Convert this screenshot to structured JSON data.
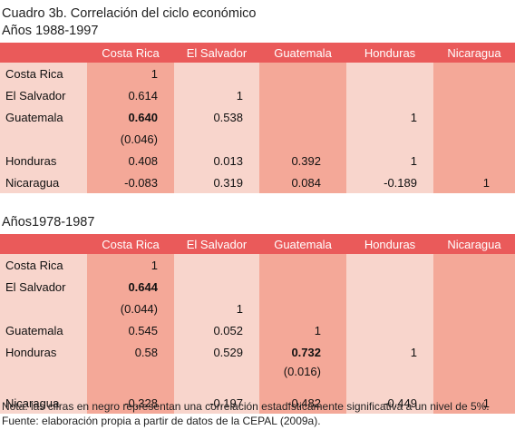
{
  "table1": {
    "title": "Cuadro 3b. Correlación del ciclo económico",
    "subtitle": "Años 1988-1997",
    "columns": [
      "Costa Rica",
      "El Salvador",
      "Guatemala",
      "Honduras",
      "Nicaragua"
    ],
    "rows": [
      {
        "label": "Costa Rica",
        "cells": [
          "1",
          "",
          "",
          "",
          ""
        ]
      },
      {
        "label": "El Salvador",
        "cells": [
          "0.614",
          "1",
          "",
          "",
          ""
        ]
      },
      {
        "label": "Guatemala",
        "cells": [
          "0.640",
          "0.538",
          "",
          "1",
          ""
        ]
      },
      {
        "label": "",
        "cells": [
          "(0.046)",
          "",
          "",
          "",
          ""
        ]
      },
      {
        "label": "Honduras",
        "cells": [
          "0.408",
          "0.013",
          "0.392",
          "1",
          ""
        ]
      },
      {
        "label": "Nicaragua",
        "cells": [
          "-0.083",
          "0.319",
          "0.084",
          "-0.189",
          "1"
        ]
      }
    ]
  },
  "table2": {
    "subtitle": "Años1978-1987",
    "columns": [
      "Costa Rica",
      "El Salvador",
      "Guatemala",
      "Honduras",
      "Nicaragua"
    ],
    "rows": [
      {
        "label": "Costa Rica",
        "cells": [
          "1",
          "",
          "",
          "",
          ""
        ]
      },
      {
        "label": "El Salvador",
        "cells": [
          "0.644",
          "",
          "",
          "",
          ""
        ]
      },
      {
        "label": "",
        "cells": [
          "(0.044)",
          "1",
          "",
          "",
          ""
        ]
      },
      {
        "label": "Guatemala",
        "cells": [
          "0.545",
          "0.052",
          "1",
          "",
          ""
        ]
      },
      {
        "label": "Honduras",
        "cells": [
          "0.58",
          "0.529",
          "0.732",
          "1",
          ""
        ]
      },
      {
        "label": "",
        "cells": [
          "",
          "",
          "(0.016)",
          "",
          ""
        ]
      },
      {
        "label": "Nicaragua",
        "cells": [
          "-0.328",
          "-0.197",
          "-0.482",
          "-0.449",
          "1"
        ]
      }
    ]
  },
  "footer": {
    "note": "Nota: las cifras en negro representan una correlación estadísticamente significativa a un nivel de 5%.",
    "source": "Fuente: elaboración propia a partir de datos de la CEPAL (2009a)."
  }
}
